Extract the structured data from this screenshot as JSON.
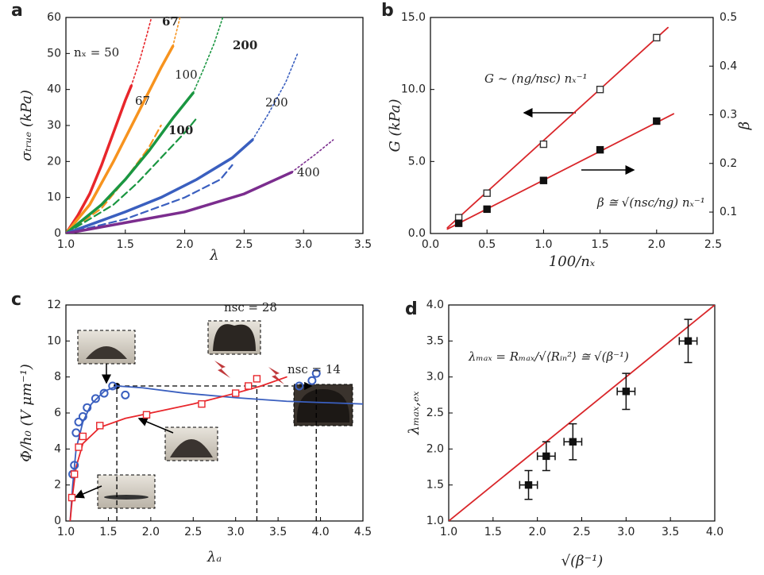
{
  "chart_data": [
    {
      "type": "line",
      "label": "a",
      "xlabel": "λ",
      "ylabel": "σₜᵣᵤₑ (kPa)",
      "xlim": [
        1,
        3.5
      ],
      "xticks": [
        {
          "value": 1,
          "label": "1.0"
        },
        1.5,
        {
          "value": 2,
          "label": "2.0"
        },
        2.5,
        {
          "value": 3,
          "label": "3.0"
        },
        3.5
      ],
      "ylim": [
        0,
        60
      ],
      "yticks": [
        0,
        10,
        20,
        30,
        40,
        50,
        60
      ],
      "series": [
        {
          "color": "#e8262b",
          "style": "solid",
          "x": [
            1.0,
            1.1,
            1.2,
            1.3,
            1.4,
            1.5,
            1.55
          ],
          "values": [
            0,
            5,
            11,
            19,
            28,
            37,
            41
          ]
        },
        {
          "color": "#e8262b",
          "style": "dotted",
          "x": [
            1.55,
            1.62,
            1.68,
            1.72
          ],
          "values": [
            41,
            48,
            55,
            60
          ]
        },
        {
          "color": "#f7931e",
          "style": "solid",
          "x": [
            1.0,
            1.2,
            1.4,
            1.6,
            1.8,
            1.9
          ],
          "values": [
            0,
            8,
            20,
            33,
            46,
            52
          ]
        },
        {
          "color": "#f7931e",
          "style": "dotted",
          "x": [
            1.9,
            1.93,
            1.96
          ],
          "values": [
            52,
            56,
            60
          ]
        },
        {
          "color": "#f7931e",
          "style": "dashed",
          "x": [
            1.0,
            1.3,
            1.5,
            1.7,
            1.8
          ],
          "values": [
            0,
            7,
            15,
            24,
            30
          ]
        },
        {
          "color": "#1a9641",
          "style": "solid",
          "x": [
            1.0,
            1.3,
            1.5,
            1.7,
            1.9,
            2.07
          ],
          "values": [
            0,
            8,
            15,
            23,
            32,
            39
          ]
        },
        {
          "color": "#1a9641",
          "style": "dotted",
          "x": [
            2.07,
            2.15,
            2.25,
            2.32
          ],
          "values": [
            39,
            45,
            53,
            60
          ]
        },
        {
          "color": "#1a9641",
          "style": "dashed",
          "x": [
            1.0,
            1.4,
            1.6,
            1.8,
            2.0,
            2.1
          ],
          "values": [
            0,
            8,
            14,
            21,
            28,
            32
          ]
        },
        {
          "color": "#3a5fbf",
          "style": "solid",
          "x": [
            1.0,
            1.5,
            1.8,
            2.1,
            2.4,
            2.57
          ],
          "values": [
            0,
            6,
            10,
            15,
            21,
            26
          ]
        },
        {
          "color": "#3a5fbf",
          "style": "dotted",
          "x": [
            2.57,
            2.7,
            2.85,
            2.95
          ],
          "values": [
            26,
            33,
            42,
            50
          ]
        },
        {
          "color": "#3a5fbf",
          "style": "dashed",
          "x": [
            1.0,
            1.5,
            2.0,
            2.3,
            2.4
          ],
          "values": [
            0,
            4,
            10,
            15,
            19
          ]
        },
        {
          "color": "#7b2d8e",
          "style": "solid",
          "x": [
            1.0,
            1.5,
            2.0,
            2.5,
            2.9
          ],
          "values": [
            0,
            3,
            6,
            11,
            17
          ]
        },
        {
          "color": "#7b2d8e",
          "style": "dotted",
          "x": [
            2.9,
            3.1,
            3.25
          ],
          "values": [
            17,
            22,
            26
          ]
        }
      ],
      "annotations": [
        {
          "text": "nₓ = 50"
        },
        {
          "text": "67",
          "bold": true
        },
        {
          "text": "100"
        },
        {
          "text": "200",
          "bold": true
        },
        {
          "text": "200"
        },
        {
          "text": "67"
        },
        {
          "text": "100",
          "bold": true
        },
        {
          "text": "400"
        }
      ]
    },
    {
      "type": "scatter",
      "label": "b",
      "xlabel": "100/nₓ",
      "ylabel": "G (kPa)",
      "y2label": "β",
      "xlim": [
        0,
        2.5
      ],
      "xticks": [
        {
          "value": 0,
          "label": "0.0"
        },
        0.5,
        {
          "value": 1,
          "label": "1.0"
        },
        1.5,
        {
          "value": 2,
          "label": "2.0"
        },
        2.5
      ],
      "ylim": [
        0,
        15
      ],
      "yticks": [
        {
          "value": 0,
          "label": "0.0"
        },
        {
          "value": 5,
          "label": "5.0"
        },
        {
          "value": 10,
          "label": "10.0"
        },
        {
          "value": 15,
          "label": "15.0"
        }
      ],
      "y2lim": [
        0.056,
        0.5
      ],
      "y2ticks": [
        0.1,
        0.2,
        0.3,
        0.4,
        0.5
      ],
      "series": [
        {
          "color": "#d9262a",
          "style": "solid",
          "x": [
            0.15,
            2.1
          ],
          "values": [
            0.4,
            14.3
          ]
        },
        {
          "color": "#d9262a",
          "style": "solid",
          "axis": "y2",
          "x": [
            0.15,
            2.15
          ],
          "values": [
            0.065,
            0.302
          ]
        },
        {
          "color": "#333333",
          "marker": "open-square",
          "x": [
            0.25,
            0.5,
            1,
            1.5,
            2
          ],
          "values": [
            1.1,
            2.8,
            6.2,
            10,
            13.6
          ]
        },
        {
          "color": "#111111",
          "marker": "filled-square",
          "axis": "y2",
          "x": [
            0.25,
            0.5,
            1,
            1.5,
            2
          ],
          "values": [
            0.077,
            0.106,
            0.165,
            0.228,
            0.287
          ]
        }
      ],
      "annotations": [
        {
          "text": "G ~ (ng/nsc) nₓ⁻¹"
        },
        {
          "text": "β ≅ √(nsc/ng) nₓ⁻¹"
        }
      ]
    },
    {
      "type": "scatter",
      "label": "c",
      "xlabel": "λₐ",
      "ylabel": "Φ/h₀ (V μm⁻¹)",
      "xlim": [
        1,
        4.5
      ],
      "xticks": [
        {
          "value": 1,
          "label": "1.0"
        },
        1.5,
        {
          "value": 2,
          "label": "2.0"
        },
        2.5,
        {
          "value": 3,
          "label": "3.0"
        },
        3.5,
        {
          "value": 4,
          "label": "4.0"
        },
        4.5
      ],
      "ylim": [
        0,
        12
      ],
      "yticks": [
        0,
        2,
        4,
        6,
        8,
        10,
        12
      ],
      "series": [
        {
          "color": "#3a5fbf",
          "style": "solid",
          "x": [
            1.05,
            1.08,
            1.12,
            1.2,
            1.3,
            1.45,
            1.6,
            1.9,
            2.4,
            3.0,
            3.6,
            4.2,
            4.5
          ],
          "values": [
            0,
            2,
            4,
            5.5,
            6.5,
            7.2,
            7.5,
            7.4,
            7.1,
            6.85,
            6.65,
            6.55,
            6.5
          ]
        },
        {
          "color": "#e8262b",
          "style": "solid",
          "x": [
            1.05,
            1.08,
            1.12,
            1.2,
            1.4,
            1.7,
            2.0,
            2.5,
            3.0,
            3.3,
            3.6
          ],
          "values": [
            0,
            1.5,
            3,
            4.3,
            5.2,
            5.7,
            6.0,
            6.5,
            7.1,
            7.5,
            8.0
          ]
        },
        {
          "color": "#3a5fbf",
          "marker": "open-circle",
          "x": [
            1.08,
            1.1,
            1.12,
            1.15,
            1.2,
            1.25,
            1.35,
            1.45,
            1.55,
            1.7,
            3.75,
            3.9,
            3.95
          ],
          "values": [
            2.6,
            3.1,
            4.9,
            5.5,
            5.8,
            6.3,
            6.8,
            7.1,
            7.5,
            7.0,
            7.5,
            7.8,
            8.2
          ]
        },
        {
          "color": "#e8262b",
          "marker": "open-square",
          "x": [
            1.07,
            1.1,
            1.15,
            1.2,
            1.4,
            1.95,
            2.6,
            3.0,
            3.15,
            3.25
          ],
          "values": [
            1.3,
            2.6,
            4.1,
            4.7,
            5.3,
            5.9,
            6.5,
            7.1,
            7.5,
            7.9
          ]
        }
      ],
      "vlines": [
        1.6,
        3.25,
        3.95
      ],
      "hline": {
        "y": 7.5,
        "x": [
          1.6,
          3.95
        ]
      },
      "annotations": [
        {
          "text": "nsc = 28"
        },
        {
          "text": "nsc = 14"
        }
      ]
    },
    {
      "type": "scatter",
      "label": "d",
      "xlabel": "√(β⁻¹)",
      "ylabel": "λₘₐₓ,ₑₓ",
      "xlim": [
        1,
        4
      ],
      "xticks": [
        {
          "value": 1,
          "label": "1.0"
        },
        1.5,
        {
          "value": 2,
          "label": "2.0"
        },
        2.5,
        {
          "value": 3,
          "label": "3.0"
        },
        3.5,
        {
          "value": 4,
          "label": "4.0"
        }
      ],
      "ylim": [
        1,
        4
      ],
      "yticks": [
        {
          "value": 1,
          "label": "1.0"
        },
        1.5,
        {
          "value": 2,
          "label": "2.0"
        },
        2.5,
        {
          "value": 3,
          "label": "3.0"
        },
        3.5,
        {
          "value": 4,
          "label": "4.0"
        }
      ],
      "series": [
        {
          "color": "#d9262a",
          "style": "solid",
          "x": [
            1,
            4
          ],
          "values": [
            1,
            4
          ]
        },
        {
          "color": "#111111",
          "marker": "filled-square",
          "x": [
            1.9,
            2.1,
            2.4,
            3.0,
            3.7
          ],
          "values": [
            1.5,
            1.9,
            2.1,
            2.8,
            3.5
          ],
          "xerr": [
            0.1,
            0.1,
            0.1,
            0.1,
            0.1
          ],
          "yerr": [
            0.2,
            0.2,
            0.25,
            0.25,
            0.3
          ]
        }
      ],
      "annotations": [
        {
          "text": "λₘₐₓ = Rₘₐₓ/√⟨Rᵢₙ²⟩ ≅ √(β⁻¹)"
        }
      ]
    }
  ]
}
